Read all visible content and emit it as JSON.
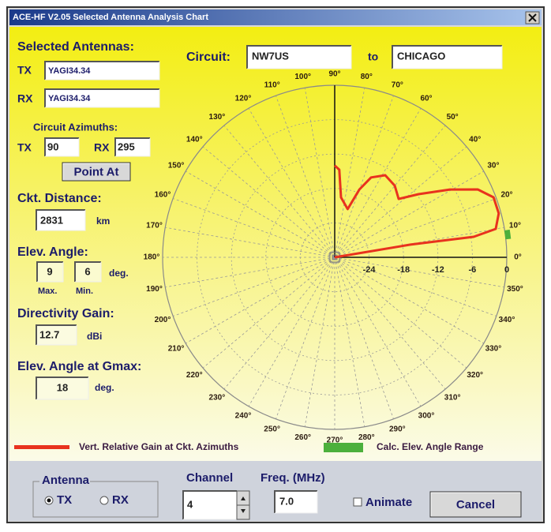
{
  "window": {
    "title": "ACE-HF V2.05  Selected Antenna Analysis Chart"
  },
  "antennas": {
    "heading": "Selected Antennas:",
    "tx_label": "TX",
    "tx": "YAGI34.34",
    "rx_label": "RX",
    "rx": "YAGI34.34"
  },
  "azimuths": {
    "heading": "Circuit Azimuths:",
    "tx_label": "TX",
    "tx": 90,
    "rx_label": "RX",
    "rx": 295
  },
  "point_at": "Point At",
  "distance": {
    "label": "Ckt. Distance:",
    "value": 2831,
    "unit": "km"
  },
  "elev_angle": {
    "label": "Elev. Angle:",
    "max": 9,
    "min": 6,
    "unit": "deg.",
    "max_label": "Max.",
    "min_label": "Min."
  },
  "gain": {
    "label": "Directivity Gain:",
    "value": 12.7,
    "unit": "dBi"
  },
  "elev_gmax": {
    "label": "Elev. Angle at Gmax:",
    "value": 18,
    "unit": "deg."
  },
  "circuit": {
    "label": "Circuit:",
    "from": "NW7US",
    "to_label": "to",
    "to": "CHICAGO"
  },
  "chart_data": {
    "type": "polar",
    "series": [
      {
        "name": "Vert. Relative Gain at Ckt. Azimuths",
        "color": "#e8321e",
        "theta": [
          0,
          9.5,
          8.4,
          10,
          15,
          20.7,
          25.4,
          30.5,
          37,
          42.4,
          50,
          58.4,
          65.5,
          70,
          75,
          84,
          87,
          90
        ],
        "values": [
          -30,
          -16.6,
          -5.5,
          -1.5,
          -0.4,
          -0.4,
          -2.4,
          -6.7,
          -11.7,
          -14.9,
          -13.7,
          -13.2,
          -14.7,
          -17.4,
          -21.3,
          -19.5,
          -14.7,
          -14
        ]
      }
    ],
    "range_band": {
      "name": "Calc. Elev. Angle Range",
      "color": "#4cb03c"
    },
    "rlim": [
      -30,
      0
    ],
    "rticks": [
      -24,
      -18,
      -12,
      -6,
      0
    ],
    "thetaticks": [
      {
        "value": 0,
        "label": "0°"
      },
      {
        "value": 10,
        "label": "10°"
      },
      {
        "value": 20,
        "label": "20°"
      },
      {
        "value": 30,
        "label": "30°"
      },
      {
        "value": 40,
        "label": "40°"
      },
      {
        "value": 50,
        "label": "50°"
      },
      {
        "value": 60,
        "label": "60°"
      },
      {
        "value": 70,
        "label": "70°"
      },
      {
        "value": 80,
        "label": "80°"
      },
      {
        "value": 90,
        "label": "90°"
      },
      {
        "value": 100,
        "label": "100°"
      },
      {
        "value": 110,
        "label": "110°"
      },
      {
        "value": 120,
        "label": "120°"
      },
      {
        "value": 130,
        "label": "130°"
      },
      {
        "value": 140,
        "label": "140°"
      },
      {
        "value": 150,
        "label": "150°"
      },
      {
        "value": 160,
        "label": "160°"
      },
      {
        "value": 170,
        "label": "170°"
      },
      {
        "value": 180,
        "label": "180°"
      },
      {
        "value": 190,
        "label": "190°"
      },
      {
        "value": 200,
        "label": "200°"
      },
      {
        "value": 210,
        "label": "210°"
      },
      {
        "value": 220,
        "label": "220°"
      },
      {
        "value": 230,
        "label": "230°"
      },
      {
        "value": 240,
        "label": "240°"
      },
      {
        "value": 250,
        "label": "250°"
      },
      {
        "value": 260,
        "label": "260°"
      },
      {
        "value": 270,
        "label": "270°"
      },
      {
        "value": 280,
        "label": "280°"
      },
      {
        "value": 290,
        "label": "290°"
      },
      {
        "value": 300,
        "label": "300°"
      },
      {
        "value": 310,
        "label": "310°"
      },
      {
        "value": 320,
        "label": "320°"
      },
      {
        "value": 330,
        "label": "330°"
      },
      {
        "value": 340,
        "label": "340°"
      },
      {
        "value": 350,
        "label": "350°"
      }
    ],
    "grid": true
  },
  "controls": {
    "antenna_group": "Antenna",
    "tx": "TX",
    "rx": "RX",
    "selected": "TX",
    "channel_label": "Channel",
    "channel": 4,
    "freq_label": "Freq. (MHz)",
    "freq": "7.0",
    "animate": "Animate",
    "animate_checked": false,
    "cancel": "Cancel"
  }
}
